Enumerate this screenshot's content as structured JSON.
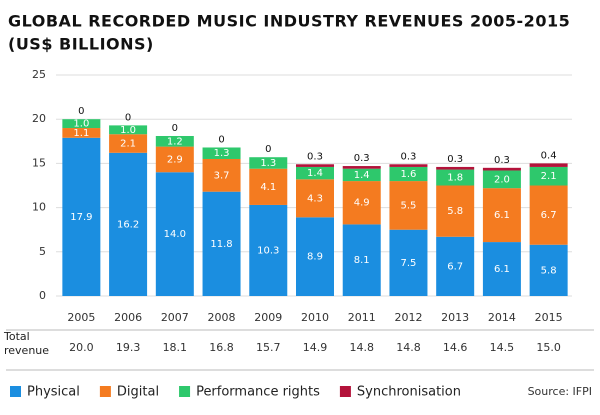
{
  "chart_data": {
    "type": "stacked_bar",
    "title": "GLOBAL RECORDED MUSIC INDUSTRY REVENUES 2005-2015",
    "subtitle": "(US$ BILLIONS)",
    "source": "Source: IFPI",
    "categories": [
      "2005",
      "2006",
      "2007",
      "2008",
      "2009",
      "2010",
      "2011",
      "2012",
      "2013",
      "2014",
      "2015"
    ],
    "series": [
      {
        "name": "Physical",
        "color": "#1b8ee0",
        "values": [
          17.9,
          16.2,
          14.0,
          11.8,
          10.3,
          8.9,
          8.1,
          7.5,
          6.7,
          6.1,
          5.8
        ],
        "value_labels": [
          "17.9",
          "16.2",
          "14.0",
          "11.8",
          "10.3",
          "8.9",
          "8.1",
          "7.5",
          "6.7",
          "6.1",
          "5.8"
        ]
      },
      {
        "name": "Digital",
        "color": "#f47b20",
        "values": [
          1.1,
          2.1,
          2.9,
          3.7,
          4.1,
          4.3,
          4.9,
          5.5,
          5.8,
          6.1,
          6.7
        ],
        "value_labels": [
          "1.1",
          "2.1",
          "2.9",
          "3.7",
          "4.1",
          "4.3",
          "4.9",
          "5.5",
          "5.8",
          "6.1",
          "6.7"
        ]
      },
      {
        "name": "Performance rights",
        "color": "#2ec86c",
        "values": [
          1.0,
          1.0,
          1.2,
          1.3,
          1.3,
          1.4,
          1.4,
          1.6,
          1.8,
          2.0,
          2.1
        ],
        "value_labels": [
          "1.0",
          "1.0",
          "1.2",
          "1.3",
          "1.3",
          "1.4",
          "1.4",
          "1.6",
          "1.8",
          "2.0",
          "2.1"
        ]
      },
      {
        "name": "Synchronisation",
        "color": "#b3123a",
        "values": [
          0,
          0,
          0,
          0,
          0,
          0.3,
          0.3,
          0.3,
          0.3,
          0.3,
          0.4
        ]
      }
    ],
    "totals_label": "Total revenue",
    "totals": [
      "20.0",
      "19.3",
      "18.1",
      "16.8",
      "15.7",
      "14.9",
      "14.8",
      "14.8",
      "14.6",
      "14.5",
      "15.0"
    ],
    "ylim": [
      0,
      25
    ],
    "yticks": [
      0,
      5,
      10,
      15,
      20,
      25
    ],
    "grid": true
  }
}
